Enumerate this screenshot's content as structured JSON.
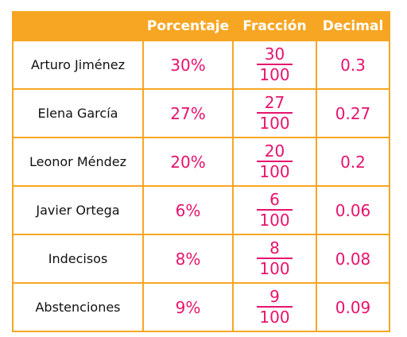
{
  "table": {
    "headers": [
      "Porcentaje",
      "Fracción",
      "Decimal"
    ],
    "rows": [
      {
        "name": "Arturo Jiménez",
        "percent": "30%",
        "numerator": "30",
        "denominator": "100",
        "decimal": "0.3"
      },
      {
        "name": "Elena García",
        "percent": "27%",
        "numerator": "27",
        "denominator": "100",
        "decimal": "0.27"
      },
      {
        "name": "Leonor Méndez",
        "percent": "20%",
        "numerator": "20",
        "denominator": "100",
        "decimal": "0.2"
      },
      {
        "name": "Javier Ortega",
        "percent": "6%",
        "numerator": "6",
        "denominator": "100",
        "decimal": "0.06"
      },
      {
        "name": "Indecisos",
        "percent": "8%",
        "numerator": "8",
        "denominator": "100",
        "decimal": "0.08"
      },
      {
        "name": "Abstenciones",
        "percent": "9%",
        "numerator": "9",
        "denominator": "100",
        "decimal": "0.09"
      }
    ]
  },
  "colors": {
    "accent": "#f7a623",
    "value": "#e6136e",
    "text": "#111111"
  }
}
